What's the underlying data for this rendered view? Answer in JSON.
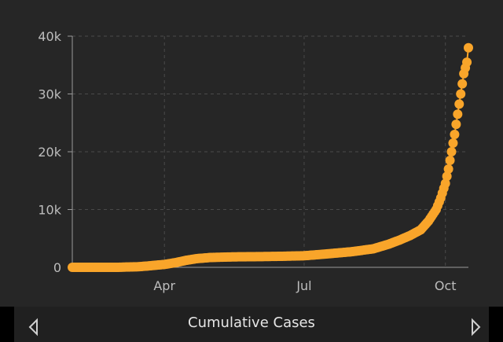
{
  "footer": {
    "title": "Cumulative Cases",
    "prev_icon": "caret-left-outline-icon",
    "next_icon": "caret-right-outline-icon"
  },
  "colors": {
    "panel_bg": "#262626",
    "series": "#f9a52a",
    "grid": "#4a4a4a",
    "tick_text": "#bdbdbd",
    "footer_bg": "#202020",
    "footer_text": "#e6e6e6"
  },
  "chart_data": {
    "type": "scatter",
    "title": "Cumulative Cases",
    "xlabel": "",
    "ylabel": "",
    "x_axis": {
      "type": "date",
      "range": [
        "2020-02-01",
        "2020-10-16"
      ],
      "ticks": [
        "2020-04-01",
        "2020-07-01",
        "2020-10-01"
      ],
      "tick_labels": [
        "Apr",
        "Jul",
        "Oct"
      ]
    },
    "y_axis": {
      "range": [
        0,
        40000
      ],
      "ticks": [
        0,
        10000,
        20000,
        30000,
        40000
      ],
      "tick_labels": [
        "0",
        "10k",
        "20k",
        "30k",
        "40k"
      ]
    },
    "grid": true,
    "legend": "none",
    "series": [
      {
        "color": "#f9a52a",
        "points": [
          [
            "2020-02-01",
            0
          ],
          [
            "2020-02-15",
            0
          ],
          [
            "2020-03-01",
            0
          ],
          [
            "2020-03-15",
            100
          ],
          [
            "2020-03-22",
            250
          ],
          [
            "2020-04-01",
            500
          ],
          [
            "2020-04-08",
            800
          ],
          [
            "2020-04-15",
            1200
          ],
          [
            "2020-04-22",
            1500
          ],
          [
            "2020-05-01",
            1700
          ],
          [
            "2020-05-15",
            1800
          ],
          [
            "2020-06-01",
            1850
          ],
          [
            "2020-06-15",
            1900
          ],
          [
            "2020-07-01",
            2000
          ],
          [
            "2020-07-15",
            2300
          ],
          [
            "2020-08-01",
            2700
          ],
          [
            "2020-08-15",
            3200
          ],
          [
            "2020-08-25",
            4000
          ],
          [
            "2020-09-01",
            4700
          ],
          [
            "2020-09-08",
            5500
          ],
          [
            "2020-09-15",
            6500
          ],
          [
            "2020-09-20",
            8000
          ],
          [
            "2020-09-25",
            10000
          ],
          [
            "2020-09-28",
            12000
          ],
          [
            "2020-10-01",
            14500
          ],
          [
            "2020-10-03",
            17000
          ],
          [
            "2020-10-05",
            20000
          ],
          [
            "2020-10-07",
            23000
          ],
          [
            "2020-10-09",
            26500
          ],
          [
            "2020-10-11",
            30000
          ],
          [
            "2020-10-13",
            33500
          ],
          [
            "2020-10-15",
            35500
          ],
          [
            "2020-10-16",
            38000
          ]
        ]
      }
    ]
  }
}
